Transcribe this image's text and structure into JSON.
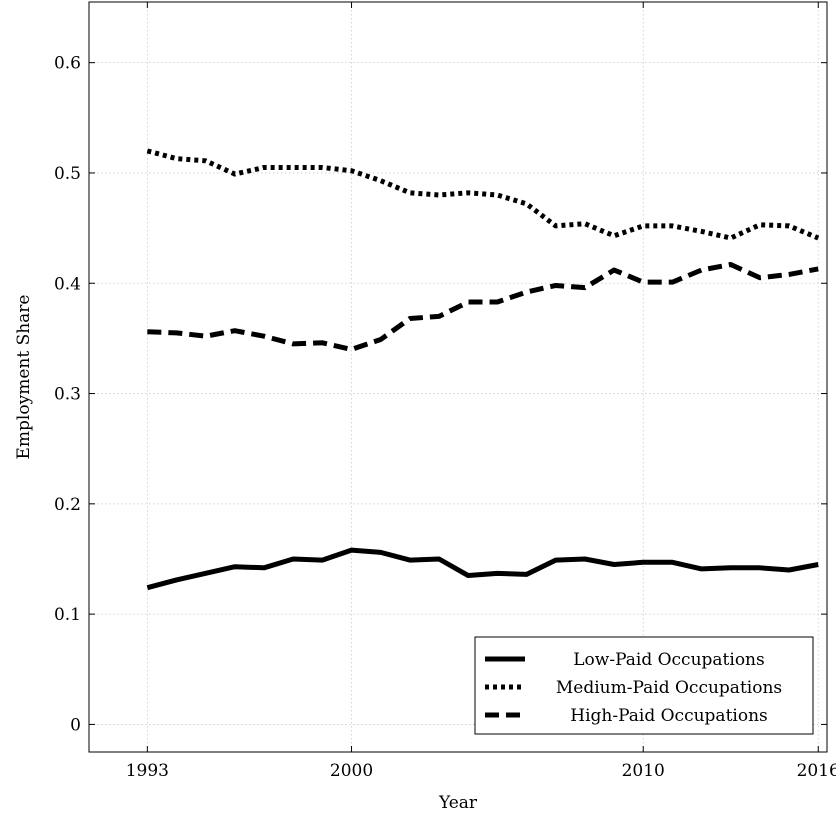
{
  "chart_data": {
    "type": "line",
    "xlabel": "Year",
    "ylabel": "Employment Share",
    "xlim": [
      1991,
      2016.3
    ],
    "ylim": [
      -0.025,
      0.655
    ],
    "xticks": [
      1993,
      2000,
      2010,
      2016
    ],
    "xtick_labels": [
      "1993",
      "2000",
      "2010",
      "2016"
    ],
    "yticks": [
      0,
      0.1,
      0.2,
      0.3,
      0.4,
      0.5,
      0.6
    ],
    "ytick_labels": [
      "0",
      "0.1",
      "0.2",
      "0.3",
      "0.4",
      "0.5",
      "0.6"
    ],
    "grid": true,
    "legend_position": "bottom-right",
    "x": [
      1993,
      1994,
      1995,
      1996,
      1997,
      1998,
      1999,
      2000,
      2001,
      2002,
      2003,
      2004,
      2005,
      2006,
      2007,
      2008,
      2009,
      2010,
      2011,
      2012,
      2013,
      2014,
      2015,
      2016
    ],
    "series": [
      {
        "name": "Low-Paid Occupations",
        "style": "solid",
        "values": [
          0.124,
          0.131,
          0.137,
          0.143,
          0.142,
          0.15,
          0.149,
          0.158,
          0.156,
          0.149,
          0.15,
          0.135,
          0.137,
          0.136,
          0.149,
          0.15,
          0.145,
          0.147,
          0.147,
          0.141,
          0.142,
          0.142,
          0.14,
          0.145
        ]
      },
      {
        "name": "Medium-Paid Occupations",
        "style": "dotted",
        "values": [
          0.52,
          0.513,
          0.511,
          0.499,
          0.505,
          0.505,
          0.505,
          0.502,
          0.493,
          0.482,
          0.48,
          0.482,
          0.48,
          0.472,
          0.452,
          0.454,
          0.443,
          0.452,
          0.452,
          0.447,
          0.441,
          0.453,
          0.452,
          0.441
        ]
      },
      {
        "name": "High-Paid Occupations",
        "style": "dashed",
        "values": [
          0.356,
          0.355,
          0.352,
          0.357,
          0.352,
          0.345,
          0.346,
          0.34,
          0.349,
          0.368,
          0.37,
          0.383,
          0.383,
          0.392,
          0.398,
          0.396,
          0.412,
          0.401,
          0.401,
          0.412,
          0.417,
          0.405,
          0.408,
          0.413
        ]
      }
    ]
  }
}
